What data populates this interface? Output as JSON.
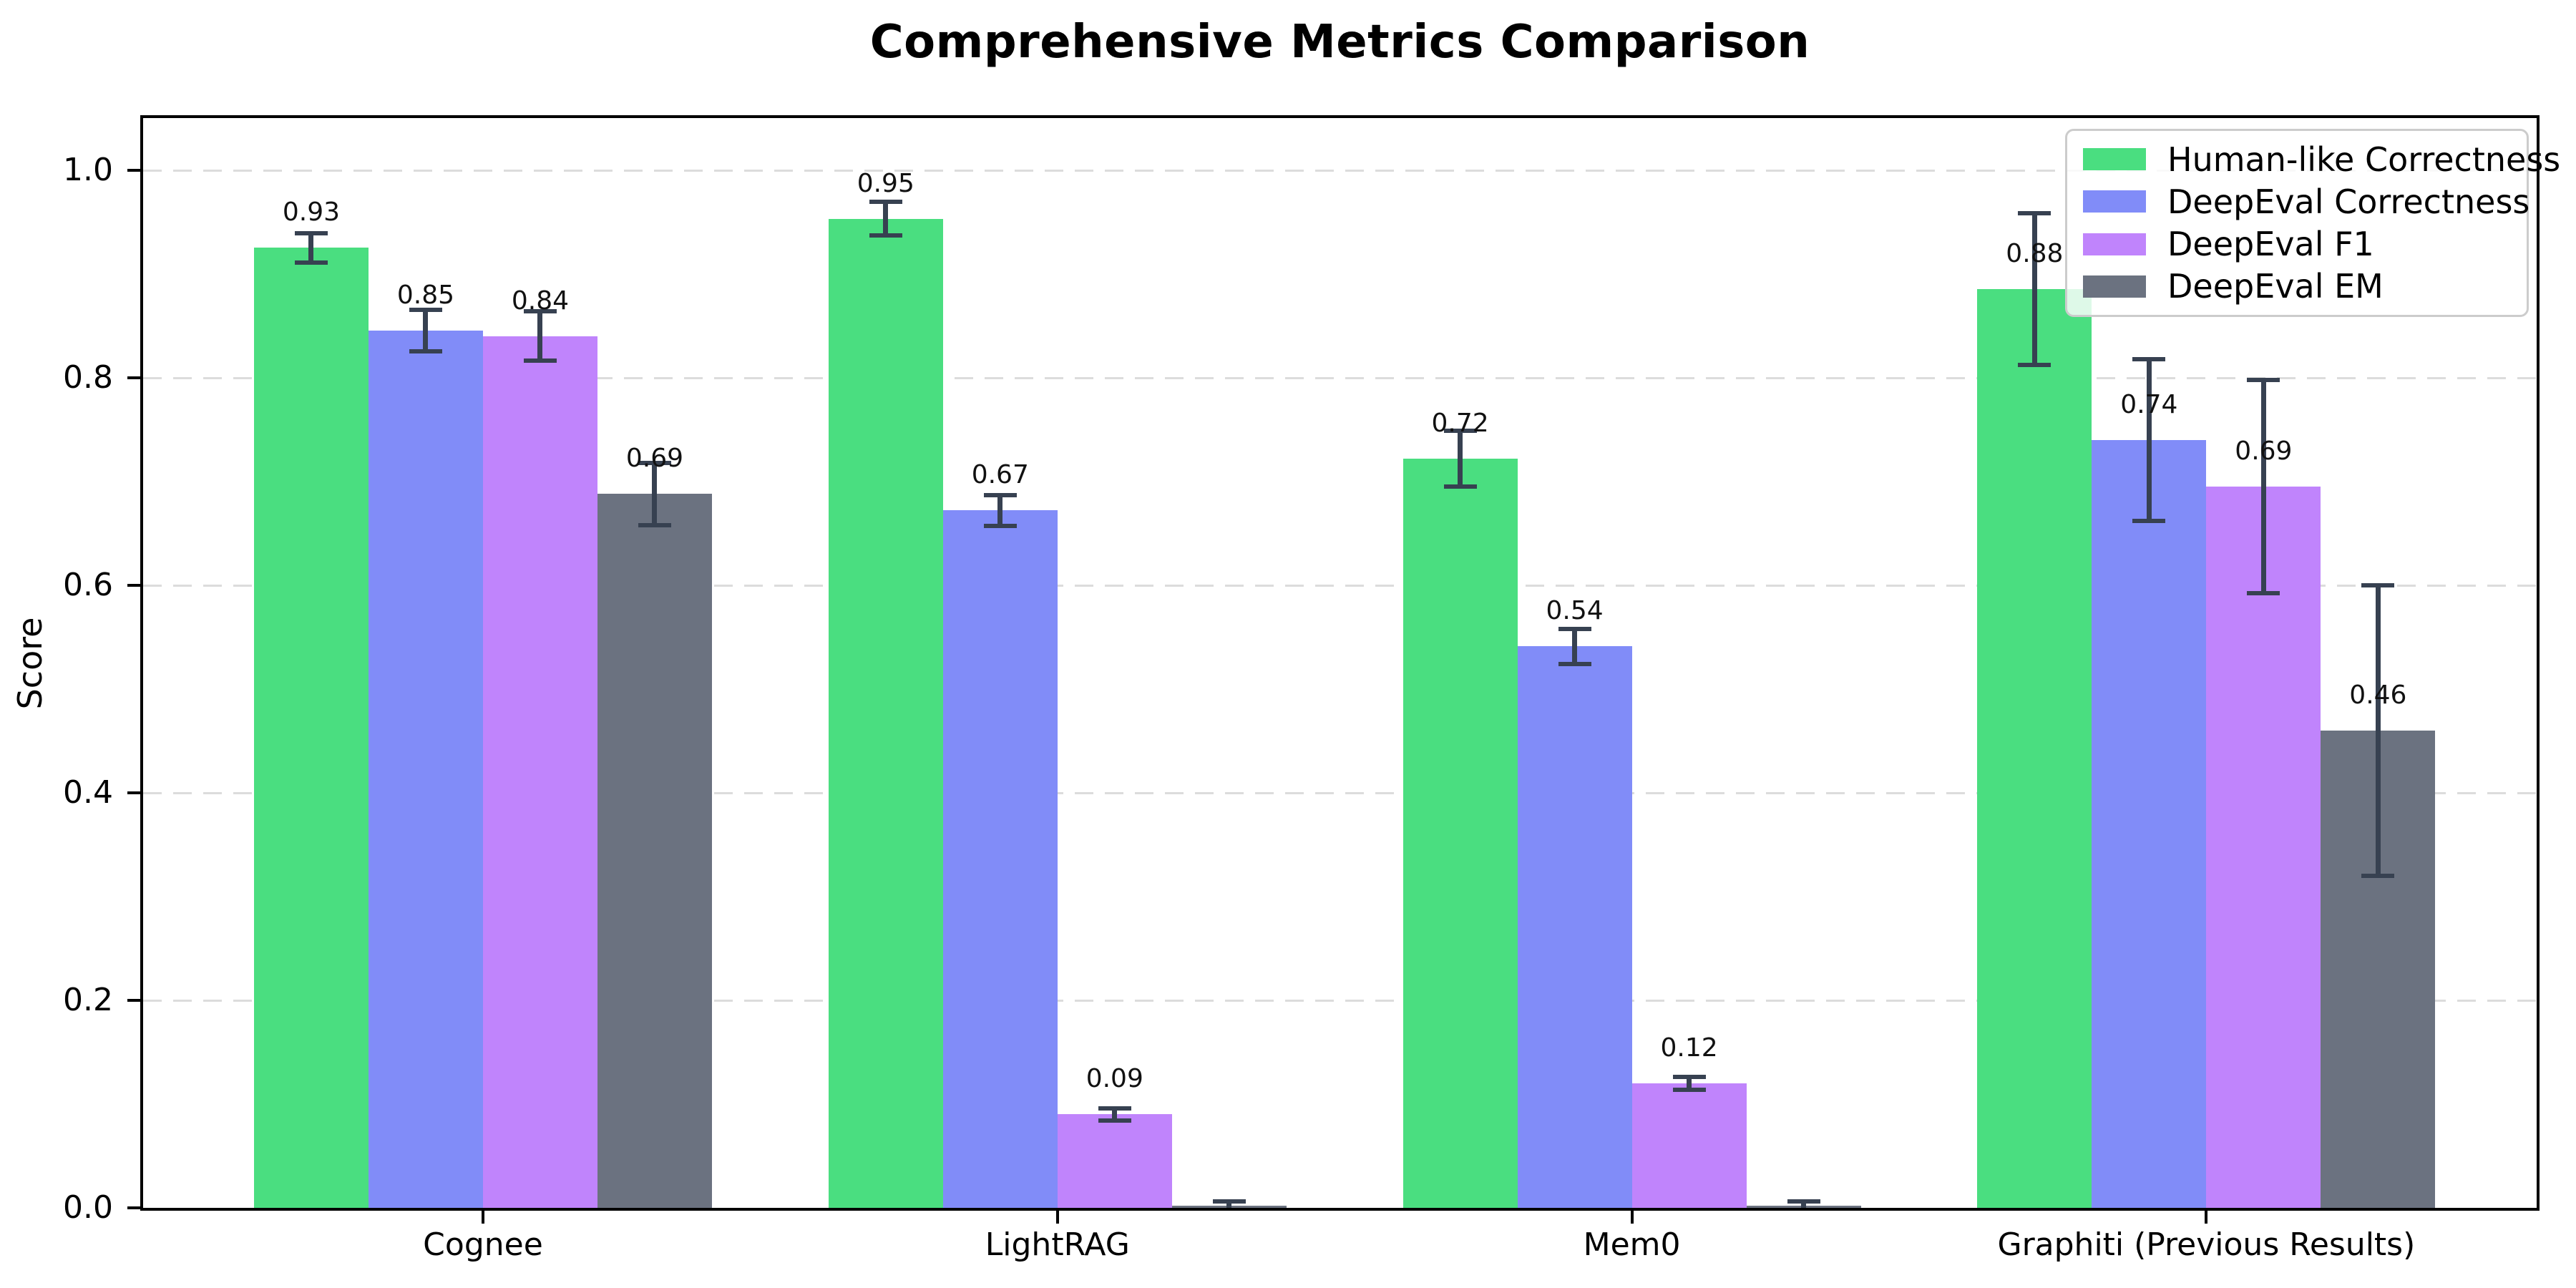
{
  "chart_data": {
    "type": "bar",
    "title": "Comprehensive Metrics Comparison",
    "ylabel": "Score",
    "xlabel": "",
    "categories": [
      "Cognee",
      "LightRAG",
      "Mem0",
      "Graphiti (Previous Results)"
    ],
    "series": [
      {
        "name": "Human-like Correctness",
        "color": "#4ade80",
        "values": [
          0.925,
          0.953,
          0.722,
          0.885
        ],
        "errors": [
          0.014,
          0.016,
          0.027,
          0.073
        ],
        "labels": [
          "0.93",
          "0.95",
          "0.72",
          "0.88"
        ]
      },
      {
        "name": "DeepEval Correctness",
        "color": "#818cf8",
        "values": [
          0.845,
          0.672,
          0.541,
          0.74
        ],
        "errors": [
          0.02,
          0.015,
          0.017,
          0.078
        ],
        "labels": [
          "0.85",
          "0.67",
          "0.54",
          "0.74"
        ]
      },
      {
        "name": "DeepEval F1",
        "color": "#c084fc",
        "values": [
          0.84,
          0.09,
          0.12,
          0.695
        ],
        "errors": [
          0.024,
          0.006,
          0.006,
          0.103
        ],
        "labels": [
          "0.84",
          "0.09",
          "0.12",
          "0.69"
        ]
      },
      {
        "name": "DeepEval EM",
        "color": "#6b7280",
        "values": [
          0.688,
          0.002,
          0.002,
          0.46
        ],
        "errors": [
          0.03,
          0.004,
          0.004,
          0.14
        ],
        "labels": [
          "0.69",
          "",
          "",
          "0.46"
        ]
      }
    ],
    "yticks": [
      "0.0",
      "0.2",
      "0.4",
      "0.6",
      "0.8",
      "1.0"
    ],
    "ylim": [
      0,
      1.05
    ],
    "grid": "horizontal-dashed",
    "legend_position": "upper-right",
    "error_bar_color": "#374151",
    "grid_color": "#dcdcdc",
    "axis_color": "#000000",
    "background_color": "#ffffff"
  }
}
